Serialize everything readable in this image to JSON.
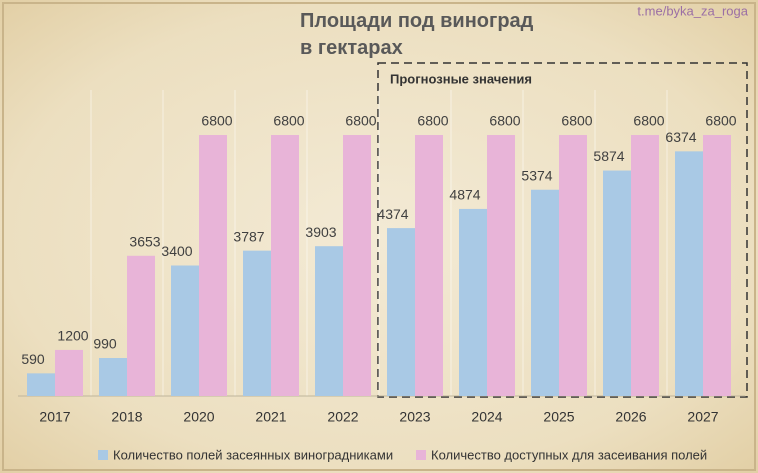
{
  "chart_data": {
    "type": "bar",
    "title": "Площади под виноград в гектарах",
    "source": "t.me/byka_za_roga",
    "annotation": "Прогнозные значения",
    "categories": [
      "2017",
      "2018",
      "2020",
      "2021",
      "2022",
      "2023",
      "2024",
      "2025",
      "2026",
      "2027"
    ],
    "series": [
      {
        "name": "Количество полей засеянных виноградниками",
        "color": "#a9c9e5",
        "values": [
          590,
          990,
          3400,
          3787,
          3903,
          4374,
          4874,
          5374,
          5874,
          6374
        ]
      },
      {
        "name": "Количество доступных для засеивания полей",
        "color": "#e8b4d8",
        "values": [
          1200,
          3653,
          6800,
          6800,
          6800,
          6800,
          6800,
          6800,
          6800,
          6800
        ]
      }
    ],
    "legend": "bottom"
  }
}
